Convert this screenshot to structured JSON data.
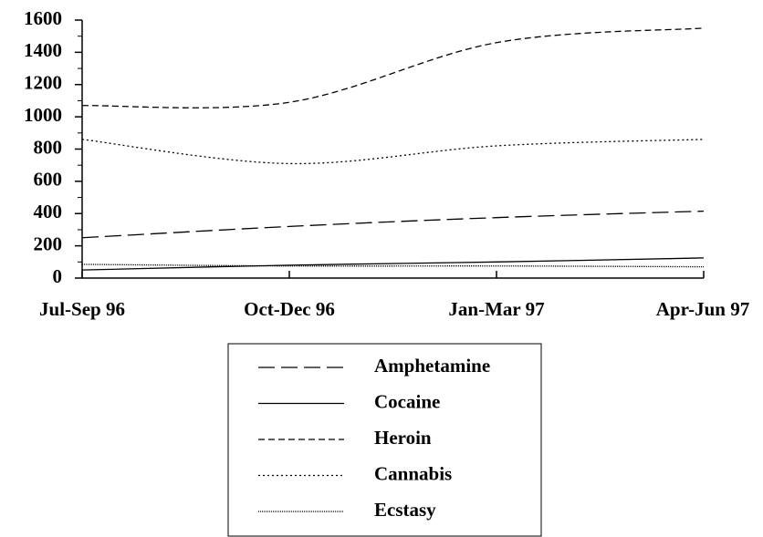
{
  "chart_data": {
    "type": "line",
    "categories": [
      "Jul-Sep 96",
      "Oct-Dec 96",
      "Jan-Mar 97",
      "Apr-Jun 97"
    ],
    "series": [
      {
        "name": "Amphetamine",
        "color": "#000000",
        "dash": "18,7",
        "values": [
          250,
          320,
          375,
          415
        ]
      },
      {
        "name": "Cocaine",
        "color": "#000000",
        "dash": "none",
        "values": [
          50,
          80,
          100,
          125
        ]
      },
      {
        "name": "Heroin",
        "color": "#000000",
        "dash": "7,4",
        "values": [
          1070,
          1090,
          1460,
          1550
        ]
      },
      {
        "name": "Cannabis",
        "color": "#000000",
        "dash": "2,3",
        "values": [
          860,
          710,
          820,
          860
        ]
      },
      {
        "name": "Ecstasy",
        "color": "#000000",
        "dash": "1,1",
        "values": [
          85,
          75,
          75,
          70
        ]
      }
    ],
    "ylim": [
      0,
      1600
    ],
    "yticks": [
      0,
      200,
      400,
      600,
      800,
      1000,
      1200,
      1400,
      1600
    ],
    "yminorticks": [
      100,
      300,
      500,
      700,
      900,
      1100,
      1300,
      1500
    ],
    "grid": false,
    "smooth": true
  }
}
